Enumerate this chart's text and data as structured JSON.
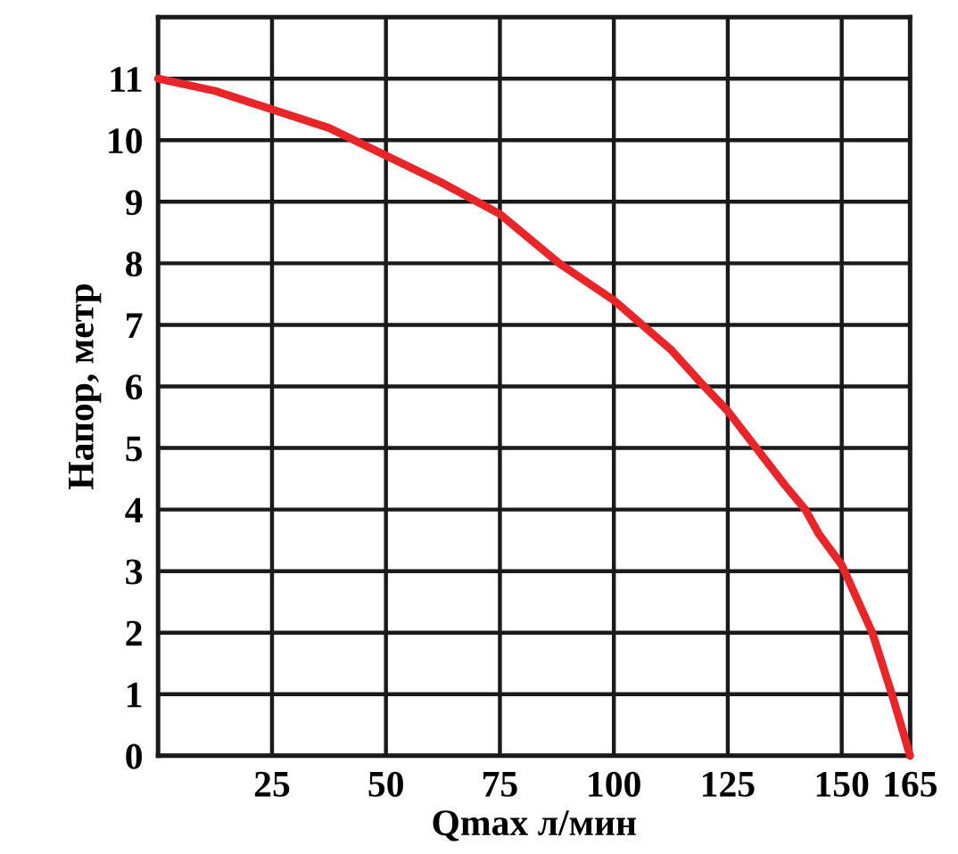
{
  "chart_data": {
    "type": "line",
    "xlabel": "Qmax л/мин",
    "ylabel": "Напор, метр",
    "series": [
      {
        "color": "#e8262a",
        "x": [
          0,
          12.5,
          25,
          37.5,
          50,
          62.5,
          75,
          88,
          100,
          112.5,
          118.6,
          125,
          137.5,
          142,
          145,
          150,
          156.7,
          161,
          163,
          165
        ],
        "values": [
          11,
          10.8,
          10.5,
          10.2,
          9.75,
          9.3,
          8.8,
          8.0,
          7.4,
          6.6,
          6.1,
          5.6,
          4.4,
          4.0,
          3.6,
          3.1,
          2.0,
          1.0,
          0.5,
          0
        ]
      }
    ],
    "xlim": [
      0,
      165
    ],
    "xticks": [
      25,
      50,
      75,
      100,
      125,
      150,
      165
    ],
    "ylim": [
      0,
      12
    ],
    "yticks": [
      0,
      1,
      2,
      3,
      4,
      5,
      6,
      7,
      8,
      9,
      10,
      11
    ],
    "grid": true,
    "marker": "none",
    "line_style": "solid"
  }
}
